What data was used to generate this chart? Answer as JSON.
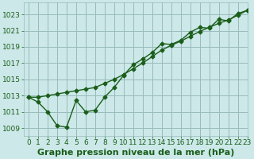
{
  "title": "Graphe pression niveau de la mer (hPa)",
  "bg_color": "#cce8e8",
  "plot_bg_color": "#cce8e8",
  "grid_color": "#99bbbb",
  "line_color": "#1a5e1a",
  "marker": "D",
  "markersize": 2.5,
  "xlim": [
    -0.5,
    23
  ],
  "ylim": [
    1008.0,
    1024.5
  ],
  "xticks": [
    0,
    1,
    2,
    3,
    4,
    5,
    6,
    7,
    8,
    9,
    10,
    11,
    12,
    13,
    14,
    15,
    16,
    17,
    18,
    19,
    20,
    21,
    22,
    23
  ],
  "yticks": [
    1009,
    1011,
    1013,
    1015,
    1017,
    1019,
    1021,
    1023
  ],
  "series1_x": [
    0,
    1,
    2,
    3,
    4,
    5,
    6,
    7,
    8,
    9,
    10,
    11,
    12,
    13,
    14,
    15,
    16,
    17,
    18,
    19,
    20,
    21,
    22,
    23
  ],
  "series1_y": [
    1012.8,
    1012.2,
    1011.0,
    1009.3,
    1009.1,
    1012.4,
    1011.0,
    1011.2,
    1012.8,
    1014.0,
    1015.5,
    1016.8,
    1017.5,
    1018.3,
    1019.4,
    1019.3,
    1019.8,
    1020.8,
    1021.4,
    1021.3,
    1022.4,
    1022.2,
    1023.1,
    1023.5
  ],
  "series2_x": [
    0,
    1,
    2,
    3,
    4,
    5,
    6,
    7,
    8,
    9,
    10,
    11,
    12,
    13,
    14,
    15,
    16,
    17,
    18,
    19,
    20,
    21,
    22,
    23
  ],
  "series2_y": [
    1012.8,
    1012.8,
    1013.0,
    1013.2,
    1013.4,
    1013.6,
    1013.8,
    1014.0,
    1014.5,
    1015.0,
    1015.6,
    1016.3,
    1017.0,
    1017.8,
    1018.6,
    1019.2,
    1019.7,
    1020.3,
    1020.9,
    1021.4,
    1021.9,
    1022.3,
    1022.9,
    1023.5
  ],
  "title_fontsize": 8,
  "tick_fontsize": 6.5,
  "title_color": "#1a5e1a",
  "linewidth": 1.0
}
